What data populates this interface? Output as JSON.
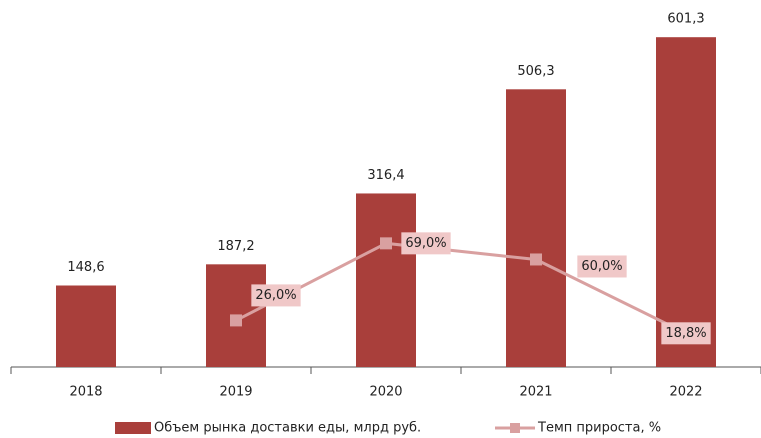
{
  "chart_data": {
    "type": "bar",
    "categories": [
      "2018",
      "2019",
      "2020",
      "2021",
      "2022"
    ],
    "series": [
      {
        "name": "Объем рынка доставки еды, млрд руб.",
        "type": "bar",
        "color": "#a93f3b",
        "values": [
          148.6,
          187.2,
          316.4,
          506.3,
          601.3
        ],
        "value_labels": [
          "148,6",
          "187,2",
          "316,4",
          "506,3",
          "601,3"
        ]
      },
      {
        "name": "Темп прироста, %",
        "type": "line",
        "axis": "y2",
        "color": "#d9a0a0",
        "values": [
          null,
          26.0,
          69.0,
          60.0,
          18.8
        ],
        "value_labels": [
          null,
          "26,0%",
          "69,0%",
          "60,0%",
          "18,8%"
        ]
      }
    ],
    "ylim": [
      0,
      660
    ],
    "y2lim": [
      0,
      202
    ],
    "legend": "bottom"
  }
}
